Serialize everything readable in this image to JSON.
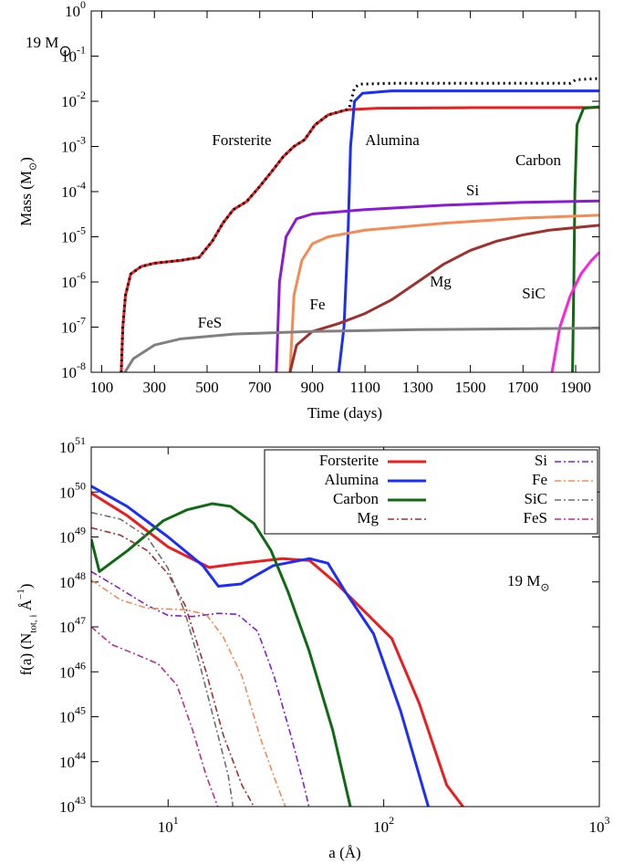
{
  "chart_data": [
    {
      "type": "line",
      "xlabel": "Time (days)",
      "ylabel": [
        {
          "text": "Mass (M"
        },
        {
          "text": "⊙",
          "shift": "sub"
        },
        {
          "text": ")"
        }
      ],
      "annotation": [
        {
          "text": "19 M"
        },
        {
          "text": "⊙",
          "shift": "sub"
        }
      ],
      "xlim": [
        60,
        1990
      ],
      "ylim": [
        1e-08,
        1
      ],
      "ylog": true,
      "xticks": [
        100,
        300,
        500,
        700,
        900,
        1100,
        1300,
        1500,
        1700,
        1900
      ],
      "yticks": [
        {
          "value": 1e-08,
          "label": "10",
          "exp": "-8"
        },
        {
          "value": 1e-07,
          "label": "10",
          "exp": "-7"
        },
        {
          "value": 1e-06,
          "label": "10",
          "exp": "-6"
        },
        {
          "value": 1e-05,
          "label": "10",
          "exp": "-5"
        },
        {
          "value": 0.0001,
          "label": "10",
          "exp": "-4"
        },
        {
          "value": 0.001,
          "label": "10",
          "exp": "-3"
        },
        {
          "value": 0.01,
          "label": "10",
          "exp": "-2"
        },
        {
          "value": 0.1,
          "label": "10",
          "exp": "-1"
        },
        {
          "value": 1,
          "label": "10",
          "exp": "0"
        }
      ],
      "series": [
        {
          "name": "Forsterite",
          "color": "#ee1c1c",
          "x": [
            174,
            180,
            190,
            210,
            250,
            300,
            400,
            470,
            520,
            560,
            600,
            650,
            700,
            750,
            790,
            830,
            870,
            910,
            960,
            1030,
            1150,
            1500,
            1990
          ],
          "values": [
            1e-08,
            1e-07,
            5e-07,
            1.5e-06,
            2.2e-06,
            2.6e-06,
            3e-06,
            3.5e-06,
            8e-06,
            2e-05,
            4e-05,
            6e-05,
            0.00013,
            0.0003,
            0.0006,
            0.001,
            0.0014,
            0.003,
            0.005,
            0.0065,
            0.007,
            0.0072,
            0.0073
          ]
        },
        {
          "name": "Alumina",
          "color": "#1a2eff",
          "x": [
            1000,
            1020,
            1035,
            1045,
            1060,
            1090,
            1200,
            1990
          ],
          "values": [
            1e-08,
            1e-07,
            1e-05,
            0.001,
            0.01,
            0.015,
            0.017,
            0.017
          ]
        },
        {
          "name": "Carbon",
          "color": "#0e6b12",
          "x": [
            1888,
            1893,
            1897,
            1905,
            1930,
            1990
          ],
          "values": [
            1e-08,
            1e-06,
            0.0001,
            0.003,
            0.007,
            0.0075
          ]
        },
        {
          "name": "Si",
          "color": "#8a1ad6",
          "x": [
            763,
            775,
            800,
            840,
            900,
            1100,
            1400,
            1700,
            1990
          ],
          "values": [
            1e-08,
            1e-06,
            1e-05,
            2.5e-05,
            3.2e-05,
            4e-05,
            5e-05,
            5.8e-05,
            6.2e-05
          ]
        },
        {
          "name": "Fe",
          "color": "#f58a55",
          "x": [
            815,
            830,
            860,
            900,
            960,
            1100,
            1400,
            1700,
            1990
          ],
          "values": [
            1e-08,
            5e-07,
            3e-06,
            7e-06,
            1e-05,
            1.4e-05,
            2e-05,
            2.6e-05,
            3e-05
          ]
        },
        {
          "name": "Mg",
          "color": "#a0302e",
          "x": [
            815,
            840,
            900,
            1000,
            1100,
            1200,
            1300,
            1400,
            1500,
            1600,
            1700,
            1800,
            1990
          ],
          "values": [
            1e-08,
            4e-08,
            8e-08,
            1.2e-07,
            2e-07,
            4e-07,
            1e-06,
            2.5e-06,
            5e-06,
            8e-06,
            1.1e-05,
            1.4e-05,
            1.8e-05
          ]
        },
        {
          "name": "SiC",
          "color": "#ff22dd",
          "x": [
            1810,
            1840,
            1880,
            1920,
            1960,
            1990
          ],
          "values": [
            1e-08,
            1e-07,
            5e-07,
            1.5e-06,
            3e-06,
            4.5e-06
          ]
        },
        {
          "name": "FeS",
          "color": "#808080",
          "x": [
            188,
            220,
            300,
            400,
            600,
            900,
            1300,
            1990
          ],
          "values": [
            1e-08,
            2e-08,
            4e-08,
            5.5e-08,
            7e-08,
            8e-08,
            8.8e-08,
            9.5e-08
          ]
        },
        {
          "color": "#000000",
          "style": "dotted",
          "x": [
            174,
            180,
            190,
            210,
            250,
            300,
            400,
            470,
            520,
            560,
            600,
            650,
            700,
            750,
            790,
            830,
            870,
            910,
            960,
            1030,
            1040,
            1050,
            1060,
            1080,
            1200,
            1880,
            1900,
            1990
          ],
          "values": [
            1e-08,
            1e-07,
            5e-07,
            1.5e-06,
            2.2e-06,
            2.6e-06,
            3e-06,
            3.5e-06,
            8e-06,
            2e-05,
            4e-05,
            6e-05,
            0.00013,
            0.0003,
            0.0006,
            0.001,
            0.0014,
            0.003,
            0.005,
            0.0065,
            0.007,
            0.012,
            0.02,
            0.024,
            0.025,
            0.025,
            0.03,
            0.032
          ]
        }
      ]
    },
    {
      "type": "line",
      "xlabel": "a (Å)",
      "ylabel": [
        {
          "text": "f(a)  (N"
        },
        {
          "text": "tot, i",
          "shift": "sub"
        },
        {
          "text": " Å"
        },
        {
          "text": "−1",
          "shift": "sup"
        },
        {
          "text": ")"
        }
      ],
      "annotation": [
        {
          "text": "19 M"
        },
        {
          "text": "⊙",
          "shift": "sub"
        }
      ],
      "xlim": [
        4.4,
        1000
      ],
      "xlog": true,
      "ylim": [
        1e+43,
        1e+51
      ],
      "ylog": true,
      "legend": "upper right",
      "xticks": [
        {
          "value": 10,
          "label": "10",
          "exp": "1"
        },
        {
          "value": 100,
          "label": "10",
          "exp": "2"
        },
        {
          "value": 1000,
          "label": "10",
          "exp": "3"
        }
      ],
      "yticks": [
        {
          "value": 1e+43,
          "label": "10",
          "exp": "43"
        },
        {
          "value": 1e+44,
          "label": "10",
          "exp": "44"
        },
        {
          "value": 1e+45,
          "label": "10",
          "exp": "45"
        },
        {
          "value": 1e+46,
          "label": "10",
          "exp": "46"
        },
        {
          "value": 1e+47,
          "label": "10",
          "exp": "47"
        },
        {
          "value": 1e+48,
          "label": "10",
          "exp": "48"
        },
        {
          "value": 1e+49,
          "label": "10",
          "exp": "49"
        },
        {
          "value": 1e+50,
          "label": "10",
          "exp": "50"
        },
        {
          "value": 1e+51,
          "label": "10",
          "exp": "51"
        }
      ],
      "series": [
        {
          "name": "Forsterite",
          "color": "#ee1c1c",
          "x": [
            4.4,
            6.45,
            10,
            15.5,
            21.8,
            33.8,
            45.3,
            60.7,
            81.5,
            109,
            146,
            196,
            233
          ],
          "values": [
            9.5e+49,
            3e+49,
            6e+48,
            2.1e+48,
            2.6e+48,
            3.3e+48,
            3e+48,
            9e+47,
            2.2e+47,
            5.5e+46,
            2e+45,
            3e+43,
            1e+43
          ]
        },
        {
          "name": "Alumina",
          "color": "#1a2eff",
          "x": [
            4.4,
            6.45,
            10,
            14.5,
            17.1,
            21.8,
            30.7,
            45.3,
            55.1,
            67,
            89.7,
            120,
            161
          ],
          "values": [
            1.35e+50,
            4.8e+49,
            1e+49,
            2.3e+48,
            8e+47,
            9e+47,
            2.3e+48,
            3.3e+48,
            2.6e+48,
            5.6e+47,
            7e+46,
            1.3e+45,
            1e+43
          ]
        },
        {
          "name": "Carbon",
          "color": "#0e6b12",
          "x": [
            4.4,
            4.8,
            6.5,
            9.5,
            12.2,
            16,
            19.5,
            25,
            30,
            36,
            45,
            58,
            70
          ],
          "values": [
            9e+48,
            1.7e+48,
            5e+48,
            2.3e+49,
            4e+49,
            5.5e+49,
            4.8e+49,
            2e+49,
            5e+48,
            6e+47,
            3e+46,
            5e+44,
            1e+43
          ]
        },
        {
          "name": "Mg",
          "color": "#a0302e",
          "style": "dashdot",
          "x": [
            4.4,
            6,
            8,
            10,
            12,
            15,
            18,
            22,
            25
          ],
          "values": [
            1.6e+49,
            1.1e+49,
            5e+48,
            1.5e+48,
            3e+47,
            1e+46,
            4e+44,
            3e+43,
            1e+43
          ]
        },
        {
          "name": "Si",
          "color": "#8a1ad6",
          "style": "dashdot",
          "x": [
            4.4,
            6,
            8,
            10,
            13,
            17,
            21,
            26,
            31,
            37,
            42,
            45
          ],
          "values": [
            1.7e+48,
            7e+47,
            3e+47,
            1.8e+47,
            1.7e+47,
            2e+47,
            1.9e+47,
            8e+46,
            8e+45,
            4e+44,
            4e+43,
            1e+43
          ]
        },
        {
          "name": "Fe",
          "color": "#f58a55",
          "style": "dashdot",
          "x": [
            4.4,
            6,
            8,
            12,
            15,
            18,
            22,
            27,
            32,
            35
          ],
          "values": [
            1.1e+48,
            4e+47,
            2.6e+47,
            2.4e+47,
            1.9e+47,
            6e+46,
            8e+45,
            3e+44,
            3e+43,
            1e+43
          ]
        },
        {
          "name": "SiC",
          "color": "#6e6e6e",
          "style": "dashdot",
          "x": [
            4.4,
            6,
            8,
            10,
            12,
            14,
            17,
            19,
            20
          ],
          "values": [
            3.5e+49,
            2.5e+49,
            1e+49,
            2e+48,
            2e+47,
            1.5e+46,
            4e+44,
            5e+43,
            1e+43
          ]
        },
        {
          "name": "FeS",
          "color": "#c0289a",
          "style": "dashdot",
          "x": [
            4.4,
            5.5,
            7,
            9,
            11,
            13,
            15,
            17
          ],
          "values": [
            1e+47,
            4e+46,
            2.5e+46,
            1.5e+46,
            5e+45,
            5e+44,
            5e+43,
            1e+43
          ]
        }
      ]
    }
  ]
}
